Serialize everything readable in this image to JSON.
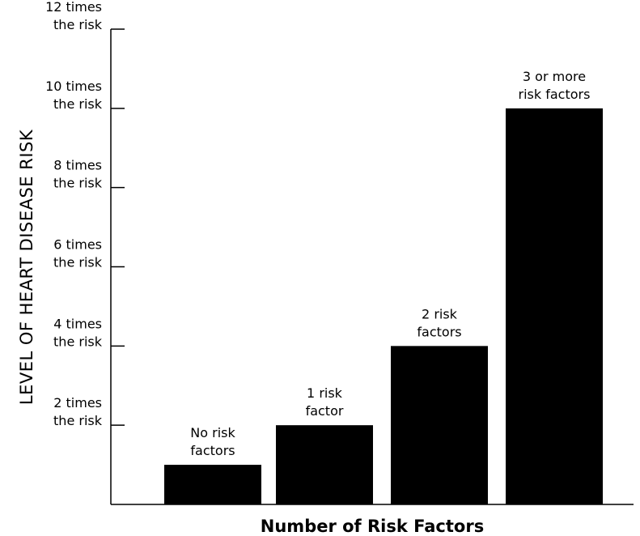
{
  "chart_data": {
    "type": "bar",
    "categories": [
      "No risk factors",
      "1 risk factor",
      "2 risk factors",
      "3 or more risk factors"
    ],
    "bar_labels": [
      [
        "No risk",
        "factors"
      ],
      [
        "1 risk",
        "factor"
      ],
      [
        "2 risk",
        "factors"
      ],
      [
        "3 or more",
        "risk factors"
      ]
    ],
    "values": [
      1,
      2,
      4,
      10
    ],
    "ylim": [
      0,
      12
    ],
    "yticks": [
      2,
      4,
      6,
      8,
      10,
      12
    ],
    "ytick_labels": [
      [
        "2 times",
        "the risk"
      ],
      [
        "4 times",
        "the risk"
      ],
      [
        "6 times",
        "the risk"
      ],
      [
        "8 times",
        "the risk"
      ],
      [
        "10 times",
        "the risk"
      ],
      [
        "12 times",
        "the risk"
      ]
    ],
    "xlabel": "Number of Risk Factors",
    "ylabel": "LEVEL OF HEART DISEASE RISK",
    "grid": false,
    "legend": "none",
    "bar_color": "#000000",
    "axis_color": "#000000"
  }
}
